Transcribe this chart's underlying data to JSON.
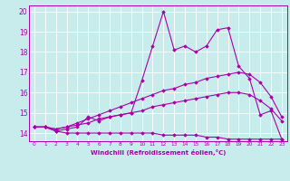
{
  "title": "",
  "xlabel": "Windchill (Refroidissement éolien,°C)",
  "ylabel": "",
  "background_color": "#c8ecec",
  "line_color": "#aa00aa",
  "xlim": [
    -0.5,
    23.5
  ],
  "ylim": [
    13.6,
    20.3
  ],
  "xticks": [
    0,
    1,
    2,
    3,
    4,
    5,
    6,
    7,
    8,
    9,
    10,
    11,
    12,
    13,
    14,
    15,
    16,
    17,
    18,
    19,
    20,
    21,
    22,
    23
  ],
  "yticks": [
    14,
    15,
    16,
    17,
    18,
    19,
    20
  ],
  "series": [
    [
      14.3,
      14.3,
      14.1,
      14.2,
      14.3,
      14.8,
      14.6,
      14.8,
      14.9,
      15.0,
      16.6,
      18.3,
      20.0,
      18.1,
      18.3,
      18.0,
      18.3,
      19.1,
      19.2,
      17.3,
      16.7,
      14.9,
      15.1,
      13.7
    ],
    [
      14.3,
      14.3,
      14.2,
      14.3,
      14.5,
      14.7,
      14.9,
      15.1,
      15.3,
      15.5,
      15.7,
      15.9,
      16.1,
      16.2,
      16.4,
      16.5,
      16.7,
      16.8,
      16.9,
      17.0,
      16.9,
      16.5,
      15.8,
      14.8
    ],
    [
      14.3,
      14.3,
      14.2,
      14.3,
      14.4,
      14.5,
      14.7,
      14.8,
      14.9,
      15.0,
      15.1,
      15.3,
      15.4,
      15.5,
      15.6,
      15.7,
      15.8,
      15.9,
      16.0,
      16.0,
      15.9,
      15.6,
      15.2,
      14.6
    ],
    [
      14.3,
      14.3,
      14.1,
      14.0,
      14.0,
      14.0,
      14.0,
      14.0,
      14.0,
      14.0,
      14.0,
      14.0,
      13.9,
      13.9,
      13.9,
      13.9,
      13.8,
      13.8,
      13.7,
      13.7,
      13.7,
      13.7,
      13.7,
      13.7
    ]
  ]
}
